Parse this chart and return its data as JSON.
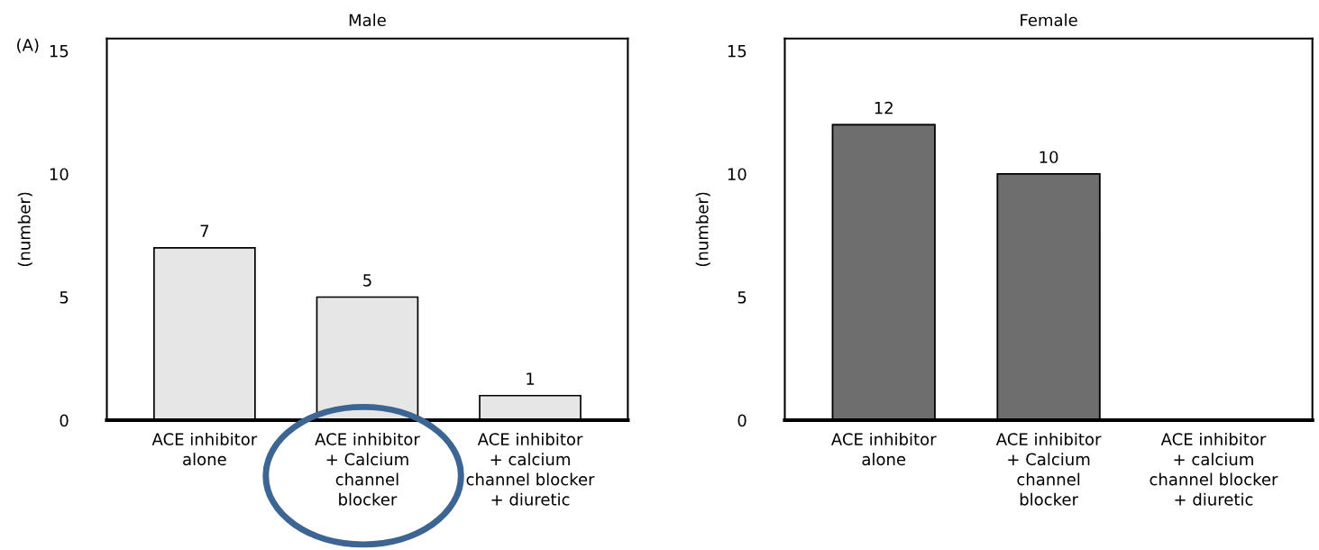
{
  "chart_data": [
    {
      "type": "bar",
      "title": "Male",
      "ylabel": "(number)",
      "categories": [
        "ACE inhibitor\nalone",
        "ACE inhibitor\n+ Calcium\nchannel\nblocker",
        "ACE inhibitor\n+ calcium\nchannel blocker\n+ diuretic"
      ],
      "values": [
        7,
        5,
        1
      ],
      "color": "#e6e6e6",
      "data_labels": true,
      "ylim": [
        0,
        15.5
      ],
      "yticks": [
        0,
        5,
        10,
        15
      ],
      "grid": false,
      "legend": false,
      "annotations": [
        "(A)"
      ]
    },
    {
      "type": "bar",
      "title": "Female",
      "ylabel": "(number)",
      "categories": [
        "ACE inhibitor\nalone",
        "ACE inhibitor\n+ Calcium\nchannel\nblocker",
        "ACE inhibitor\n+ calcium\nchannel blocker\n+ diuretic"
      ],
      "values": [
        12,
        10,
        0
      ],
      "value_labels": [
        "12",
        "10",
        null
      ],
      "color": "#6e6e6e",
      "ylim": [
        0,
        15.5
      ],
      "yticks": [
        0,
        5,
        10,
        15
      ],
      "grid": false,
      "legend": false
    }
  ]
}
